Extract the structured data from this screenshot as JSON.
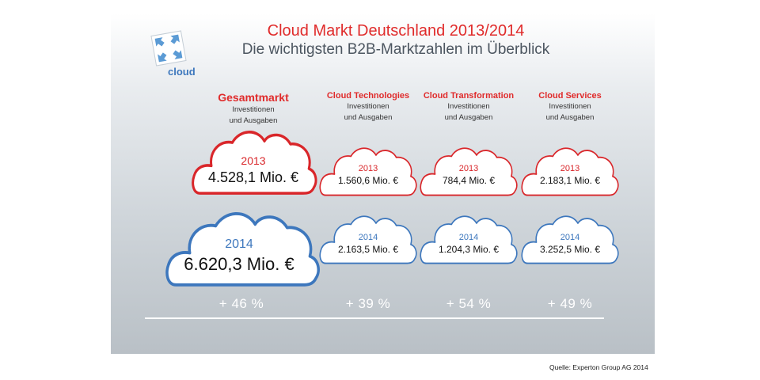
{
  "title": "Cloud Markt Deutschland 2013/2014",
  "subtitle": "Die wichtigsten B2B-Marktzahlen im Überblick",
  "logo_text": "cloud",
  "colors": {
    "red": "#d9262a",
    "blue": "#3d77bd"
  },
  "icons": [
    "cloud-logo-icon",
    "cloud-icon"
  ],
  "chart_data": {
    "type": "table",
    "title": "Cloud Markt Deutschland 2013/2014",
    "subtitle": "Die wichtigsten B2B-Marktzahlen im Überblick",
    "categories": [
      {
        "name": "Gesamtmarkt",
        "sub1": "Investitionen",
        "sub2": "und Ausgaben"
      },
      {
        "name": "Cloud Technologies",
        "sub1": "Investitionen",
        "sub2": "und Ausgaben"
      },
      {
        "name": "Cloud Transformation",
        "sub1": "Investitionen",
        "sub2": "und Ausgaben"
      },
      {
        "name": "Cloud Services",
        "sub1": "Investitionen",
        "sub2": "und Ausgaben"
      }
    ],
    "series": [
      {
        "name": "2013",
        "values": [
          4528.1,
          1560.6,
          784.4,
          2183.1
        ],
        "labels": [
          "4.528,1 Mio. €",
          "1.560,6 Mio. €",
          "784,4 Mio. €",
          "2.183,1 Mio. €"
        ]
      },
      {
        "name": "2014",
        "values": [
          6620.3,
          2163.5,
          1204.3,
          3252.5
        ],
        "labels": [
          "6.620,3 Mio. €",
          "2.163,5 Mio. €",
          "1.204,3 Mio. €",
          "3.252,5 Mio. €"
        ]
      }
    ],
    "growth": [
      "+ 46 %",
      "+ 39 %",
      "+ 54 %",
      "+ 49 %"
    ],
    "unit": "Mio. €"
  },
  "source": "Quelle: Experton Group AG 2014"
}
